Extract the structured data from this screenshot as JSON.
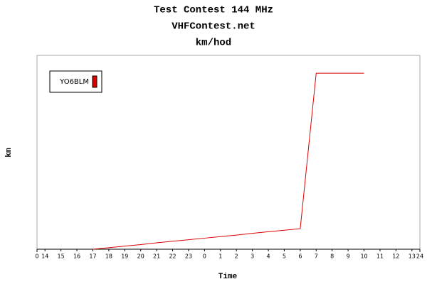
{
  "chart_data": {
    "type": "line",
    "title": "Test Contest 144 MHz",
    "subtitle": "VHFContest.net",
    "unit_label": "km/hod",
    "y_label": "km",
    "x_label": "Time",
    "categories": [
      "14",
      "15",
      "16",
      "17",
      "18",
      "19",
      "20",
      "21",
      "22",
      "23",
      "0",
      "1",
      "2",
      "3",
      "4",
      "5",
      "6",
      "7",
      "8",
      "9",
      "10",
      "11",
      "12",
      "13"
    ],
    "xlim": [
      0,
      24
    ],
    "xticks": [
      0,
      24
    ],
    "ylim": [
      0,
      100
    ],
    "legend": "top-left",
    "series": [
      {
        "name": "YO6BLM",
        "color": "#dd0000",
        "values": [
          null,
          null,
          null,
          0,
          0.8,
          1.6,
          2.4,
          3.3,
          4.1,
          4.9,
          5.7,
          6.5,
          7.3,
          8.2,
          9.0,
          9.8,
          10.6,
          90.8,
          90.8,
          90.8,
          90.8,
          null,
          null,
          null
        ]
      }
    ]
  }
}
